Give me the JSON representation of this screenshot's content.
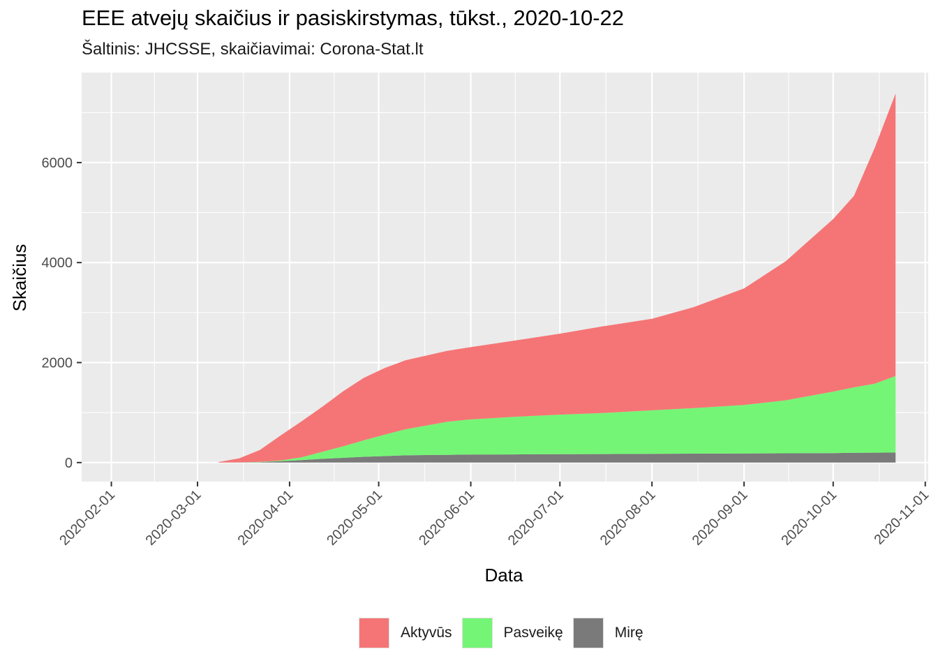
{
  "chart_data": {
    "type": "area",
    "title": "EEE atvejų skaičius ir pasiskirstymas, tūkst., 2020-10-22",
    "subtitle": "Šaltinis: JHCSSE, skaičiavimai: Corona-Stat.lt",
    "xlabel": "Data",
    "ylabel": "Skaičius",
    "xlim": [
      "2020-01-22",
      "2020-11-02"
    ],
    "ylim": [
      -380,
      7800
    ],
    "x_ticks": [
      "2020-02-01",
      "2020-03-01",
      "2020-04-01",
      "2020-05-01",
      "2020-06-01",
      "2020-07-01",
      "2020-08-01",
      "2020-09-01",
      "2020-10-01",
      "2020-11-01"
    ],
    "y_ticks": [
      0,
      2000,
      4000,
      6000
    ],
    "stacked": true,
    "grid": true,
    "legend_position": "bottom",
    "x": [
      "2020-03-08",
      "2020-03-15",
      "2020-03-22",
      "2020-03-29",
      "2020-04-05",
      "2020-04-12",
      "2020-04-19",
      "2020-04-26",
      "2020-05-03",
      "2020-05-10",
      "2020-05-17",
      "2020-05-24",
      "2020-05-31",
      "2020-06-15",
      "2020-07-01",
      "2020-07-15",
      "2020-08-01",
      "2020-08-15",
      "2020-09-01",
      "2020-09-15",
      "2020-10-01",
      "2020-10-08",
      "2020-10-15",
      "2020-10-22"
    ],
    "series": [
      {
        "name": "Mirę",
        "color": "#7a7a7a",
        "values": [
          0,
          2,
          8,
          28,
          50,
          75,
          95,
          115,
          130,
          145,
          150,
          155,
          160,
          163,
          168,
          170,
          175,
          178,
          182,
          185,
          190,
          195,
          198,
          200
        ]
      },
      {
        "name": "Pasveikę",
        "color": "#75f576",
        "values": [
          0,
          2,
          5,
          15,
          55,
          140,
          230,
          330,
          430,
          520,
          590,
          660,
          700,
          750,
          790,
          820,
          870,
          910,
          970,
          1060,
          1230,
          1310,
          1380,
          1530
        ]
      },
      {
        "name": "Aktyvūs",
        "color": "#f57576",
        "values": [
          10,
          80,
          240,
          500,
          720,
          900,
          1100,
          1250,
          1330,
          1380,
          1400,
          1420,
          1440,
          1520,
          1620,
          1730,
          1830,
          2020,
          2330,
          2780,
          3450,
          3830,
          4720,
          5650
        ]
      }
    ]
  }
}
